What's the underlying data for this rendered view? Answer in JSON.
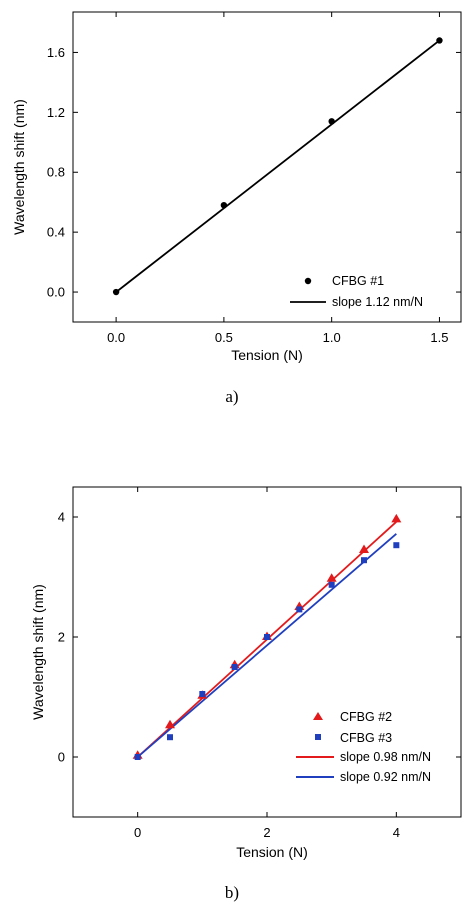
{
  "chart_data": [
    {
      "type": "scatter",
      "caption": "a)",
      "xlabel": "Tension (N)",
      "ylabel": "Wavelength shift (nm)",
      "xlim": [
        -0.2,
        1.6
      ],
      "ylim": [
        -0.2,
        1.87
      ],
      "xticks": [
        0.0,
        0.5,
        1.0,
        1.5
      ],
      "yticks": [
        0.0,
        0.4,
        0.8,
        1.2,
        1.6
      ],
      "xtick_labels": [
        "0.0",
        "0.5",
        "1.0",
        "1.5"
      ],
      "ytick_labels": [
        "0.0",
        "0.4",
        "0.8",
        "1.2",
        "1.6"
      ],
      "legend_position": "bottom-right",
      "series": [
        {
          "name": "CFBG #1",
          "kind": "scatter",
          "marker": "circle",
          "color": "#000000",
          "x": [
            0.0,
            0.5,
            1.0,
            1.5
          ],
          "y": [
            0.0,
            0.58,
            1.14,
            1.68
          ]
        },
        {
          "name": "slope 1.12 nm/N",
          "kind": "line",
          "color": "#000000",
          "x": [
            0.0,
            1.5
          ],
          "y": [
            0.0,
            1.68
          ]
        }
      ]
    },
    {
      "type": "scatter",
      "caption": "b)",
      "xlabel": "Tension (N)",
      "ylabel": "Wavelength shift (nm)",
      "xlim": [
        -1,
        5
      ],
      "ylim": [
        -1,
        4.5
      ],
      "xticks": [
        0,
        2,
        4
      ],
      "yticks": [
        0,
        2,
        4
      ],
      "xtick_labels": [
        "0",
        "2",
        "4"
      ],
      "ytick_labels": [
        "0",
        "2",
        "4"
      ],
      "legend_position": "bottom-right",
      "series": [
        {
          "name": "CFBG #2",
          "kind": "scatter",
          "marker": "triangle",
          "color": "#e31a1c",
          "x": [
            0,
            0.5,
            1.0,
            1.5,
            2.0,
            2.5,
            3.0,
            3.5,
            4.0
          ],
          "y": [
            0.02,
            0.53,
            1.02,
            1.53,
            2.0,
            2.5,
            2.97,
            3.45,
            3.96
          ]
        },
        {
          "name": "CFBG #3",
          "kind": "scatter",
          "marker": "square",
          "color": "#1f3fbf",
          "x": [
            0,
            0.5,
            1.0,
            1.5,
            2.0,
            2.5,
            3.0,
            3.5,
            4.0
          ],
          "y": [
            0.0,
            0.33,
            1.05,
            1.5,
            2.0,
            2.46,
            2.87,
            3.28,
            3.53
          ]
        },
        {
          "name": "slope 0.98 nm/N",
          "kind": "line",
          "color": "#e31a1c",
          "x": [
            0,
            4
          ],
          "y": [
            0.0,
            3.92
          ]
        },
        {
          "name": "slope 0.92 nm/N",
          "kind": "line",
          "color": "#1f3fbf",
          "x": [
            0,
            4
          ],
          "y": [
            0.0,
            3.72
          ]
        }
      ]
    }
  ]
}
